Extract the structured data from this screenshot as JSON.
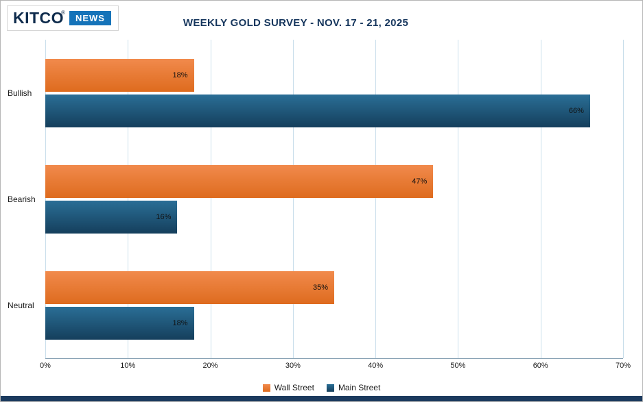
{
  "header": {
    "logo": {
      "brand": "KITCO",
      "registered": "®",
      "news": "NEWS"
    },
    "title": "WEEKLY GOLD SURVEY - NOV. 17 - 21, 2025"
  },
  "chart_data": {
    "type": "bar",
    "orientation": "horizontal",
    "title": "WEEKLY GOLD SURVEY - NOV. 17 - 21, 2025",
    "categories": [
      "Bullish",
      "Bearish",
      "Neutral"
    ],
    "series": [
      {
        "name": "Wall Street",
        "color": "#E87636",
        "gradient": [
          "#F18A4C",
          "#DE6B1E"
        ],
        "values": [
          18,
          47,
          35
        ]
      },
      {
        "name": "Main Street",
        "color": "#1E5B80",
        "gradient": [
          "#2A6E96",
          "#153F5C"
        ],
        "values": [
          66,
          16,
          18
        ]
      }
    ],
    "value_suffix": "%",
    "xlim": [
      0,
      70
    ],
    "x_ticks": [
      "0%",
      "10%",
      "20%",
      "30%",
      "40%",
      "50%",
      "60%",
      "70%"
    ],
    "grid": true,
    "legend_position": "bottom"
  },
  "colors": {
    "title": "#16365D",
    "logo_navy": "#0E2B4C",
    "logo_blue": "#1573B9",
    "grid": "#C9DEEB",
    "axis": "#8AA3B5",
    "strip": "#1B3A5E",
    "value_label": "#111111"
  }
}
